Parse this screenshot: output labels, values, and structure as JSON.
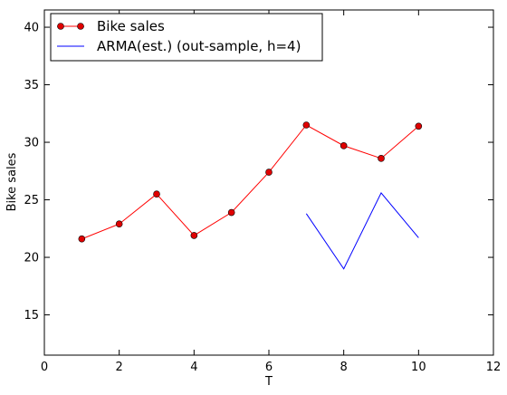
{
  "chart_data": {
    "type": "line",
    "title": "",
    "xlabel": "T",
    "ylabel": "Bike sales",
    "xlim": [
      0,
      12
    ],
    "ylim": [
      11.5,
      41.5
    ],
    "xticks": [
      0,
      2,
      4,
      6,
      8,
      10,
      12
    ],
    "yticks": [
      15,
      20,
      25,
      30,
      35,
      40
    ],
    "grid": false,
    "legend_position": "top-left",
    "series": [
      {
        "name": "Bike sales",
        "color": "#ff0000",
        "marker": "circle",
        "x": [
          1,
          2,
          3,
          4,
          5,
          6,
          7,
          8,
          9,
          10
        ],
        "y": [
          21.6,
          22.9,
          25.5,
          21.9,
          23.9,
          27.4,
          31.5,
          29.7,
          28.6,
          31.4
        ]
      },
      {
        "name": "ARMA(est.) (out-sample, h=4)",
        "color": "#0000ff",
        "marker": "none",
        "x": [
          7,
          8,
          9,
          10
        ],
        "y": [
          23.8,
          19.0,
          25.6,
          21.7
        ]
      }
    ]
  }
}
